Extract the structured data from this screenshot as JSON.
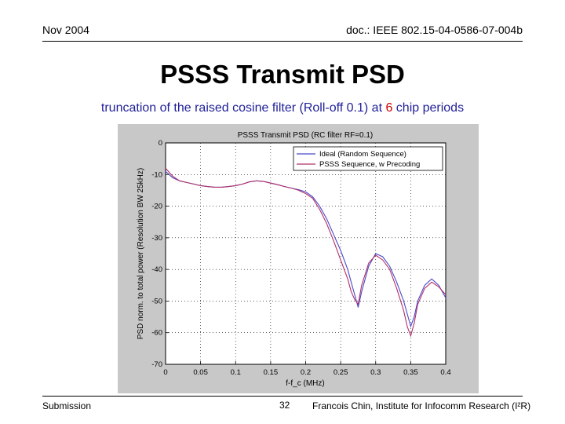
{
  "header": {
    "date": "Nov 2004",
    "doc": "doc.: IEEE 802.15-04-0586-07-004b"
  },
  "slide": {
    "title": "PSSS Transmit PSD",
    "subtitle_before": "truncation of the raised cosine filter (Roll-off 0.1) at ",
    "subtitle_highlight": "6",
    "subtitle_after": " chip periods"
  },
  "footer": {
    "left": "Submission",
    "page": "32",
    "right": "Francois Chin, Institute for Infocomm Research (I²R)"
  },
  "colors": {
    "ideal": "#4a4ac8",
    "psss": "#b0306a",
    "subtitle": "#1f1f99",
    "highlight": "#cc0000",
    "figure_bg": "#c8c8c8"
  },
  "chart_data": {
    "type": "line",
    "title": "PSSS Transmit PSD (RC filter RF=0.1)",
    "xlabel": "f-f_c (MHz)",
    "ylabel": "PSD norm. to total power (Resolution BW 25kHz)",
    "xlim": [
      0,
      0.4
    ],
    "ylim": [
      -70,
      0
    ],
    "xticks": [
      0,
      0.05,
      0.1,
      0.15,
      0.2,
      0.25,
      0.3,
      0.35,
      0.4
    ],
    "xtick_labels": [
      "0",
      "0.05",
      "0.1",
      "0.15",
      "0.2",
      "0.25",
      "0.3",
      "0.35",
      "0.4"
    ],
    "yticks": [
      0,
      -10,
      -20,
      -30,
      -40,
      -50,
      -60,
      -70
    ],
    "ytick_labels": [
      "0",
      "-10",
      "-20",
      "-30",
      "-40",
      "-50",
      "-60",
      "-70"
    ],
    "grid": true,
    "legend_position": "top-right",
    "series": [
      {
        "name": "Ideal (Random Sequence)",
        "x": [
          0,
          0.01,
          0.02,
          0.03,
          0.04,
          0.05,
          0.06,
          0.07,
          0.08,
          0.09,
          0.1,
          0.11,
          0.12,
          0.13,
          0.14,
          0.15,
          0.16,
          0.17,
          0.18,
          0.19,
          0.2,
          0.21,
          0.22,
          0.23,
          0.24,
          0.25,
          0.26,
          0.265,
          0.27,
          0.275,
          0.28,
          0.29,
          0.3,
          0.31,
          0.32,
          0.33,
          0.34,
          0.345,
          0.35,
          0.355,
          0.36,
          0.37,
          0.38,
          0.39,
          0.4
        ],
        "y": [
          -9,
          -11,
          -12,
          -12.5,
          -13,
          -13.5,
          -13.8,
          -14,
          -14,
          -13.8,
          -13.5,
          -13,
          -12.3,
          -12,
          -12.2,
          -12.7,
          -13.2,
          -13.8,
          -14.3,
          -14.8,
          -15.5,
          -17,
          -20,
          -24,
          -29,
          -34,
          -40,
          -44,
          -48,
          -52,
          -47,
          -39,
          -35,
          -36,
          -39,
          -44,
          -50,
          -54,
          -58,
          -55,
          -50,
          -45,
          -43,
          -45,
          -49
        ]
      },
      {
        "name": "PSSS Sequence, w Precoding",
        "x": [
          0,
          0.01,
          0.02,
          0.03,
          0.04,
          0.05,
          0.06,
          0.07,
          0.08,
          0.09,
          0.1,
          0.11,
          0.12,
          0.13,
          0.14,
          0.15,
          0.16,
          0.17,
          0.18,
          0.19,
          0.2,
          0.21,
          0.22,
          0.23,
          0.24,
          0.25,
          0.26,
          0.265,
          0.27,
          0.275,
          0.28,
          0.29,
          0.3,
          0.31,
          0.32,
          0.33,
          0.34,
          0.345,
          0.35,
          0.355,
          0.36,
          0.37,
          0.38,
          0.39,
          0.4
        ],
        "y": [
          -8,
          -10.5,
          -12,
          -12.5,
          -13,
          -13.5,
          -13.8,
          -14,
          -14,
          -13.8,
          -13.5,
          -13,
          -12.3,
          -12,
          -12.2,
          -12.7,
          -13.2,
          -13.8,
          -14.3,
          -15,
          -16,
          -17.5,
          -21,
          -25.5,
          -31,
          -37,
          -43,
          -47,
          -49.5,
          -51,
          -45,
          -38,
          -35.5,
          -37,
          -40,
          -46,
          -53,
          -58,
          -61,
          -57,
          -51,
          -46,
          -44,
          -45.5,
          -48
        ]
      }
    ]
  }
}
